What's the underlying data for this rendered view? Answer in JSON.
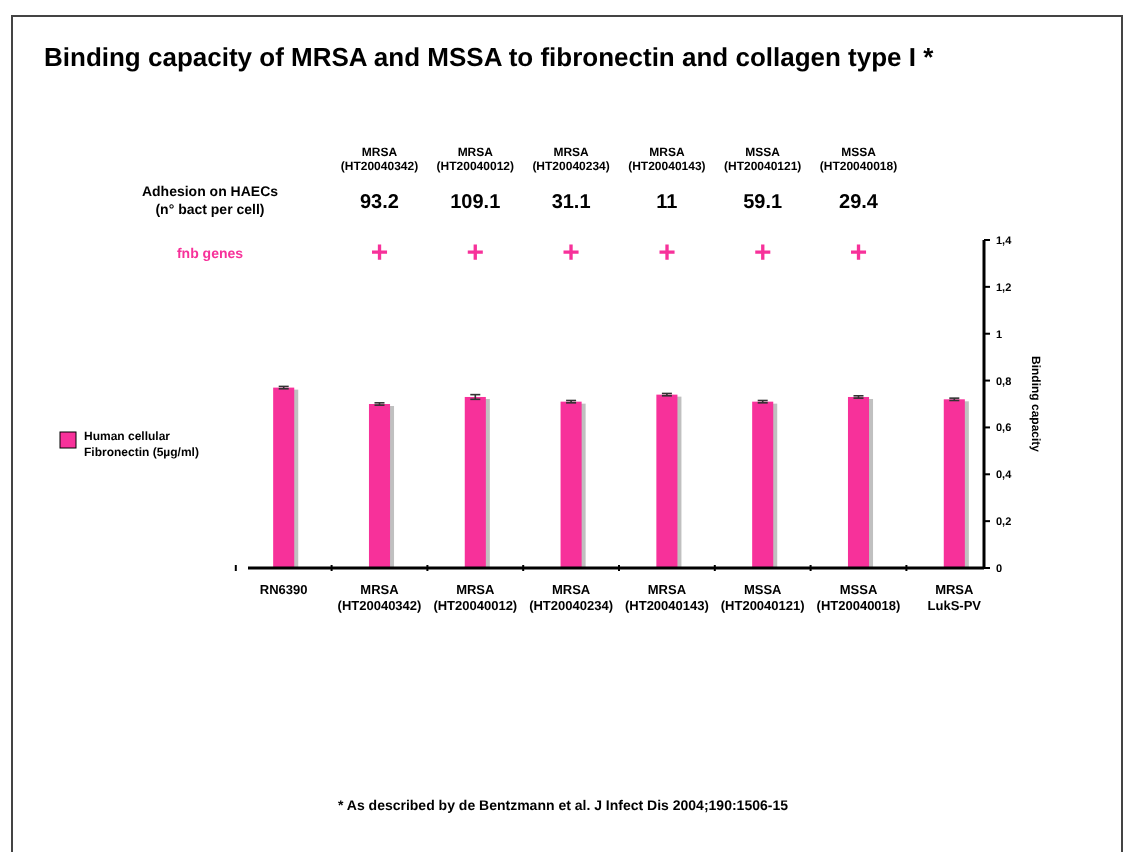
{
  "chart_data": {
    "type": "bar",
    "title": "Binding capacity of MRSA and MSSA to fibronectin and collagen type I *",
    "categories": [
      "RN6390",
      "MRSA\n(HT20040342)",
      "MRSA\n(HT20040012)",
      "MRSA\n(HT20040234)",
      "MRSA\n(HT20040143)",
      "MSSA\n(HT20040121)",
      "MSSA\n(HT20040018)",
      "MRSA\nLukS-PV"
    ],
    "series": [
      {
        "name": "Human cellular Fibronectin (5µg/ml)",
        "color": "#f7319a",
        "values": [
          0.77,
          0.7,
          0.73,
          0.71,
          0.74,
          0.71,
          0.73,
          0.72
        ],
        "errors": [
          0.005,
          0.005,
          0.01,
          0.005,
          0.005,
          0.005,
          0.005,
          0.005
        ]
      }
    ],
    "ylim": [
      0,
      1.4
    ],
    "yticks": [
      0,
      {
        "value": 0.2,
        "label": "0,2"
      },
      {
        "value": 0.4,
        "label": "0,4"
      },
      {
        "value": 0.6,
        "label": "0,6"
      },
      {
        "value": 0.8,
        "label": "0,8"
      },
      1,
      {
        "value": 1.2,
        "label": "1,2"
      },
      {
        "value": 1.4,
        "label": "1,4"
      }
    ],
    "ylabel": "Binding capacity",
    "legend": "left",
    "grid": false,
    "annotations": [
      "Adhesion on HAECs\n(n° bact per cell)",
      "fnb genes",
      "* As described by de Bentzmann et al. J Infect Dis 2004;190:1506-15",
      "MRSA\n(HT20040342)",
      "MRSA\n(HT20040012)",
      "MRSA\n(HT20040234)",
      "MRSA\n(HT20040143)",
      "MSSA\n(HT20040121)",
      "MSSA\n(HT20040018)",
      "93.2",
      "109.1",
      "31.1",
      "11",
      "59.1",
      "29.4",
      "+",
      "+",
      "+",
      "+",
      "+",
      "+"
    ]
  }
}
